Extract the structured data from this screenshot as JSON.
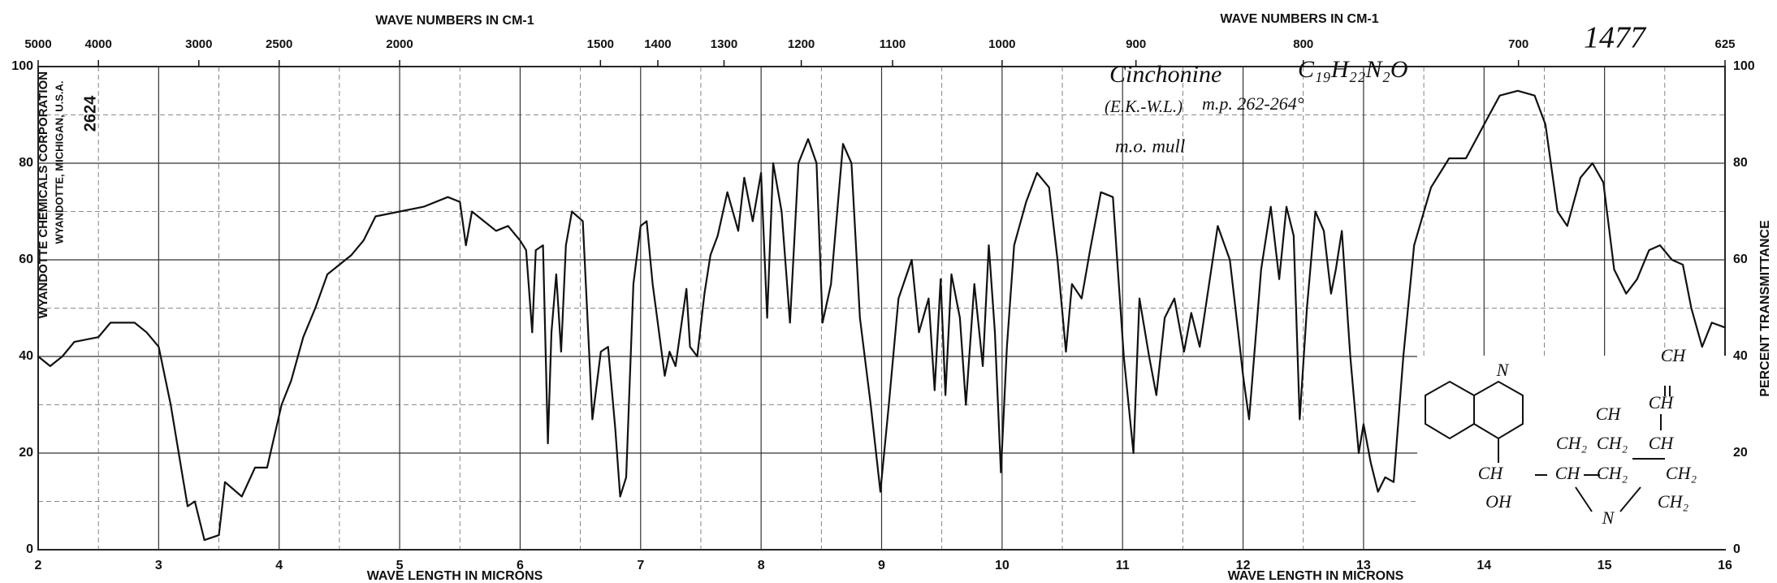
{
  "chart_data": {
    "type": "line",
    "title": "Cinchonine",
    "formula": "C₁₉H₂₂N₂O",
    "annotations": [
      "(E.K.-W.L.)",
      "m.p. 262-264°",
      "m.o. mull",
      "1477"
    ],
    "company": [
      "WYANDOTTE CHEMICALS CORPORATION",
      "WYANDOTTE, MICHIGAN, U.S.A.",
      "2624"
    ],
    "x_label": "WAVE LENGTH IN MICRONS",
    "x2_label": "WAVE NUMBERS IN CM-1",
    "y_label": "PERCENT TRANSMITTANCE",
    "structure_labels": [
      "N",
      "CH",
      "OH",
      "CH",
      "CH₂",
      "CH₂",
      "CH₂",
      "N",
      "CH",
      "CH",
      "CH",
      "CH₂",
      "CH",
      "CH₂"
    ],
    "xlim": [
      2,
      16
    ],
    "xticks": [
      2,
      3,
      4,
      5,
      6,
      7,
      8,
      9,
      10,
      11,
      12,
      13,
      14,
      15,
      16
    ],
    "x_minor_ticks": [
      2.5,
      3.5,
      4.5,
      5.5,
      6.5,
      7.5,
      8.5,
      9.5,
      10.5,
      11.5,
      12.5,
      13.5,
      14.5,
      15.5
    ],
    "x2ticks": [
      5000,
      4000,
      3000,
      2500,
      2000,
      1500,
      1400,
      1300,
      1200,
      1100,
      1000,
      900,
      800,
      700,
      625
    ],
    "ylim": [
      0,
      100
    ],
    "yticks": [
      0,
      20,
      40,
      60,
      80,
      100
    ],
    "y_minor_ticks": [
      10,
      30,
      50,
      70,
      90
    ],
    "grid": true,
    "color": "#111111",
    "x": [
      2.0,
      2.1,
      2.2,
      2.3,
      2.5,
      2.6,
      2.8,
      2.9,
      3.0,
      3.1,
      3.2,
      3.24,
      3.3,
      3.38,
      3.5,
      3.55,
      3.69,
      3.8,
      3.9,
      4.02,
      4.1,
      4.2,
      4.3,
      4.4,
      4.6,
      4.7,
      4.8,
      5.0,
      5.2,
      5.4,
      5.5,
      5.55,
      5.6,
      5.7,
      5.8,
      5.9,
      6.0,
      6.05,
      6.1,
      6.13,
      6.19,
      6.23,
      6.26,
      6.3,
      6.34,
      6.38,
      6.43,
      6.52,
      6.6,
      6.67,
      6.73,
      6.79,
      6.83,
      6.88,
      6.94,
      7.0,
      7.05,
      7.1,
      7.2,
      7.24,
      7.29,
      7.38,
      7.41,
      7.47,
      7.53,
      7.58,
      7.64,
      7.72,
      7.81,
      7.86,
      7.93,
      8.0,
      8.05,
      8.1,
      8.17,
      8.24,
      8.31,
      8.39,
      8.46,
      8.51,
      8.58,
      8.68,
      8.75,
      8.82,
      8.91,
      8.99,
      9.06,
      9.14,
      9.25,
      9.31,
      9.39,
      9.44,
      9.49,
      9.53,
      9.58,
      9.65,
      9.7,
      9.77,
      9.84,
      9.89,
      9.94,
      9.99,
      10.04,
      10.1,
      10.2,
      10.29,
      10.39,
      10.46,
      10.53,
      10.58,
      10.66,
      10.73,
      10.82,
      10.92,
      11.01,
      11.09,
      11.14,
      11.22,
      11.28,
      11.35,
      11.43,
      11.51,
      11.57,
      11.64,
      11.7,
      11.79,
      11.89,
      11.96,
      12.0,
      12.05,
      12.15,
      12.23,
      12.3,
      12.36,
      12.42,
      12.47,
      12.53,
      12.6,
      12.67,
      12.73,
      12.77,
      12.82,
      12.89,
      12.96,
      13.0,
      13.06,
      13.12,
      13.18,
      13.25,
      13.33,
      13.42,
      13.56,
      13.71,
      13.85,
      14.0,
      14.13,
      14.28,
      14.42,
      14.51,
      14.61,
      14.69,
      14.8,
      14.9,
      14.99,
      15.08,
      15.18,
      15.27,
      15.37,
      15.46,
      15.56,
      15.65,
      15.72,
      15.81,
      15.89,
      16.0
    ],
    "values": [
      40,
      38,
      40,
      43,
      44,
      47,
      47,
      45,
      42,
      30,
      15,
      9,
      10,
      2,
      3,
      14,
      11,
      17,
      17,
      30,
      35,
      44,
      50,
      57,
      61,
      64,
      69,
      70,
      71,
      73,
      72,
      63,
      70,
      68,
      66,
      67,
      64,
      62,
      45,
      62,
      63,
      22,
      45,
      57,
      41,
      63,
      70,
      68,
      27,
      41,
      42,
      25,
      11,
      15,
      55,
      67,
      68,
      55,
      36,
      41,
      38,
      54,
      42,
      40,
      53,
      61,
      65,
      74,
      66,
      77,
      68,
      78,
      48,
      80,
      70,
      47,
      80,
      85,
      80,
      47,
      55,
      84,
      80,
      48,
      30,
      12,
      30,
      52,
      60,
      45,
      52,
      33,
      56,
      32,
      57,
      48,
      30,
      55,
      38,
      63,
      45,
      16,
      42,
      63,
      72,
      78,
      75,
      60,
      41,
      55,
      52,
      62,
      74,
      73,
      40,
      20,
      52,
      40,
      32,
      48,
      52,
      41,
      49,
      42,
      52,
      67,
      60,
      45,
      36,
      27,
      58,
      71,
      56,
      71,
      65,
      27,
      50,
      70,
      66,
      53,
      58,
      66,
      40,
      20,
      26,
      18,
      12,
      15,
      14,
      40,
      63,
      75,
      81,
      81,
      88,
      94,
      95,
      94,
      88,
      70,
      67,
      77,
      80,
      76,
      58,
      53,
      56,
      62,
      63,
      60,
      59,
      50,
      42,
      47,
      46
    ]
  }
}
